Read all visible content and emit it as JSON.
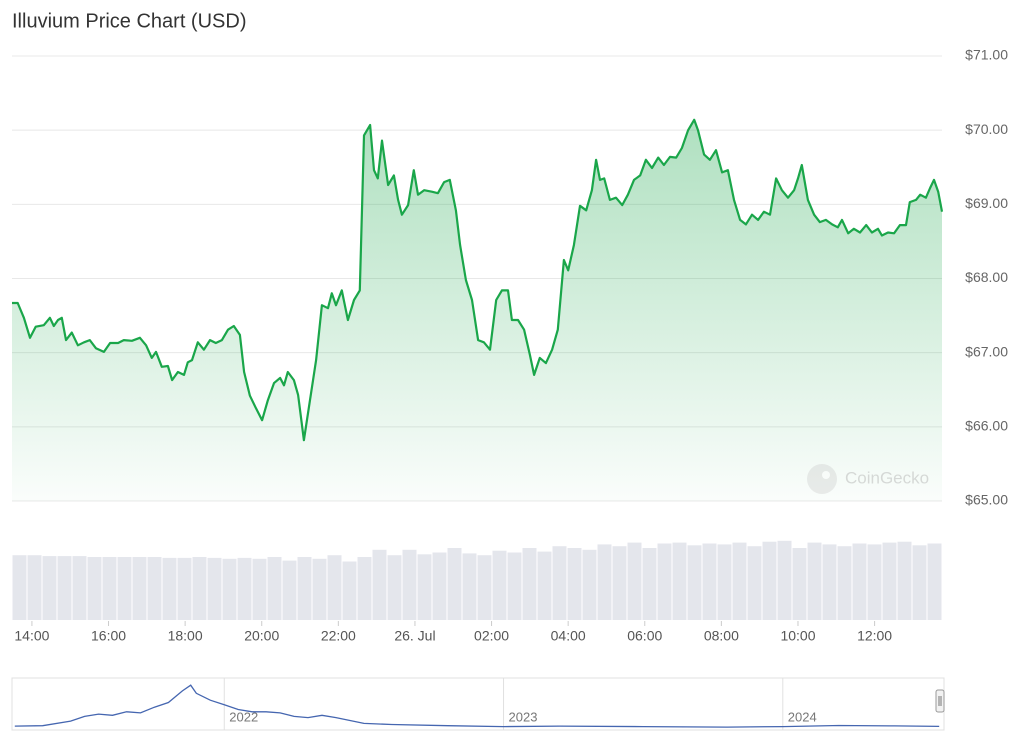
{
  "chart_data": {
    "type": "area",
    "title": "Illuvium Price Chart (USD)",
    "watermark": "CoinGecko",
    "color": "#1aa64a",
    "grid": true,
    "xlim": [
      13.48,
      37.76
    ],
    "xticks": [
      {
        "value": 14,
        "label": "14:00"
      },
      {
        "value": 16,
        "label": "16:00"
      },
      {
        "value": 18,
        "label": "18:00"
      },
      {
        "value": 20,
        "label": "20:00"
      },
      {
        "value": 22,
        "label": "22:00"
      },
      {
        "value": 24,
        "label": "26. Jul"
      },
      {
        "value": 26,
        "label": "02:00"
      },
      {
        "value": 28,
        "label": "04:00"
      },
      {
        "value": 30,
        "label": "06:00"
      },
      {
        "value": 32,
        "label": "08:00"
      },
      {
        "value": 34,
        "label": "10:00"
      },
      {
        "value": 36,
        "label": "12:00"
      }
    ],
    "ylim": [
      65,
      71
    ],
    "yticks": [
      {
        "value": 65,
        "label": "$65.00"
      },
      {
        "value": 66,
        "label": "$66.00"
      },
      {
        "value": 67,
        "label": "$67.00"
      },
      {
        "value": 68,
        "label": "$68.00"
      },
      {
        "value": 69,
        "label": "$69.00"
      },
      {
        "value": 70,
        "label": "$70.00"
      },
      {
        "value": 71,
        "label": "$71.00"
      }
    ],
    "x": [
      13.48,
      13.63,
      13.79,
      13.95,
      14.1,
      14.31,
      14.47,
      14.57,
      14.68,
      14.78,
      14.89,
      15.04,
      15.2,
      15.36,
      15.51,
      15.67,
      15.88,
      16.04,
      16.25,
      16.4,
      16.61,
      16.82,
      16.98,
      17.13,
      17.24,
      17.39,
      17.55,
      17.66,
      17.81,
      17.97,
      18.07,
      18.18,
      18.33,
      18.49,
      18.65,
      18.8,
      18.96,
      19.12,
      19.27,
      19.43,
      19.54,
      19.69,
      19.85,
      20.01,
      20.16,
      20.32,
      20.48,
      20.58,
      20.68,
      20.84,
      20.95,
      21.1,
      21.26,
      21.42,
      21.57,
      21.73,
      21.83,
      21.94,
      22.09,
      22.25,
      22.41,
      22.56,
      22.67,
      22.83,
      22.93,
      23.03,
      23.14,
      23.3,
      23.45,
      23.56,
      23.66,
      23.82,
      23.97,
      24.08,
      24.24,
      24.44,
      24.6,
      24.76,
      24.91,
      25.07,
      25.18,
      25.33,
      25.49,
      25.65,
      25.8,
      25.96,
      26.12,
      26.27,
      26.43,
      26.53,
      26.69,
      26.85,
      27.0,
      27.11,
      27.26,
      27.42,
      27.58,
      27.73,
      27.89,
      28.0,
      28.15,
      28.31,
      28.47,
      28.62,
      28.73,
      28.83,
      28.94,
      29.09,
      29.25,
      29.41,
      29.56,
      29.72,
      29.88,
      30.03,
      30.19,
      30.35,
      30.5,
      30.66,
      30.82,
      30.97,
      31.13,
      31.29,
      31.39,
      31.55,
      31.7,
      31.86,
      32.02,
      32.17,
      32.33,
      32.49,
      32.64,
      32.8,
      32.96,
      33.11,
      33.27,
      33.43,
      33.58,
      33.74,
      33.9,
      34.0,
      34.1,
      34.26,
      34.42,
      34.57,
      34.73,
      34.89,
      35.04,
      35.15,
      35.31,
      35.46,
      35.62,
      35.78,
      35.93,
      36.09,
      36.19,
      36.35,
      36.51,
      36.66,
      36.82,
      36.92,
      37.08,
      37.19,
      37.34,
      37.45,
      37.55,
      37.66,
      37.76
    ],
    "values": [
      67.67,
      67.67,
      67.47,
      67.2,
      67.35,
      67.37,
      67.47,
      67.36,
      67.44,
      67.47,
      67.17,
      67.27,
      67.1,
      67.14,
      67.17,
      67.06,
      67.01,
      67.13,
      67.13,
      67.17,
      67.16,
      67.2,
      67.1,
      66.93,
      67.01,
      66.81,
      66.82,
      66.63,
      66.74,
      66.7,
      66.87,
      66.9,
      67.14,
      67.04,
      67.17,
      67.13,
      67.17,
      67.31,
      67.36,
      67.24,
      66.74,
      66.42,
      66.25,
      66.09,
      66.36,
      66.59,
      66.66,
      66.56,
      66.74,
      66.63,
      66.43,
      65.82,
      66.36,
      66.9,
      67.64,
      67.6,
      67.8,
      67.64,
      67.84,
      67.44,
      67.71,
      67.84,
      69.93,
      70.07,
      69.46,
      69.35,
      69.86,
      69.26,
      69.39,
      69.06,
      68.86,
      68.99,
      69.46,
      69.13,
      69.19,
      69.17,
      69.15,
      69.3,
      69.33,
      68.92,
      68.45,
      67.98,
      67.71,
      67.17,
      67.14,
      67.04,
      67.71,
      67.84,
      67.84,
      67.44,
      67.44,
      67.31,
      66.97,
      66.7,
      66.93,
      66.86,
      67.04,
      67.31,
      68.25,
      68.11,
      68.45,
      68.98,
      68.92,
      69.19,
      69.6,
      69.33,
      69.35,
      69.06,
      69.09,
      68.99,
      69.13,
      69.33,
      69.39,
      69.6,
      69.49,
      69.63,
      69.53,
      69.64,
      69.63,
      69.76,
      70.0,
      70.14,
      70.0,
      69.67,
      69.6,
      69.73,
      69.43,
      69.46,
      69.06,
      68.79,
      68.73,
      68.86,
      68.79,
      68.9,
      68.86,
      69.35,
      69.19,
      69.09,
      69.19,
      69.35,
      69.53,
      69.06,
      68.86,
      68.76,
      68.79,
      68.73,
      68.69,
      68.79,
      68.61,
      68.67,
      68.62,
      68.72,
      68.62,
      68.67,
      68.58,
      68.62,
      68.61,
      68.72,
      68.72,
      69.03,
      69.06,
      69.13,
      69.09,
      69.22,
      69.33,
      69.17,
      68.9
    ],
    "volume": {
      "color": "#e4e6ec",
      "ylim": [
        0,
        100
      ],
      "values": [
        72,
        72,
        71,
        71,
        71,
        70,
        70,
        70,
        70,
        70,
        69,
        69,
        70,
        69,
        68,
        69,
        68,
        70,
        66,
        70,
        68,
        72,
        65,
        70,
        78,
        72,
        78,
        73,
        75,
        80,
        74,
        72,
        77,
        75,
        80,
        76,
        82,
        80,
        78,
        84,
        82,
        86,
        80,
        85,
        86,
        83,
        85,
        84,
        86,
        82,
        87,
        88,
        80,
        86,
        84,
        82,
        85,
        84,
        86,
        87,
        83,
        85
      ]
    },
    "navigator": {
      "color": "#4566b0",
      "xlim": [
        2021.24,
        2024.57
      ],
      "ylim": [
        0,
        1900
      ],
      "xticks": [
        2022,
        2023,
        2024
      ],
      "x": [
        2021.25,
        2021.35,
        2021.45,
        2021.5,
        2021.55,
        2021.6,
        2021.65,
        2021.7,
        2021.75,
        2021.8,
        2021.85,
        2021.88,
        2021.9,
        2021.95,
        2022.0,
        2022.05,
        2022.1,
        2022.15,
        2022.2,
        2022.25,
        2022.3,
        2022.35,
        2022.4,
        2022.5,
        2022.6,
        2022.8,
        2023.0,
        2023.2,
        2023.5,
        2023.8,
        2024.0,
        2024.2,
        2024.4,
        2024.56
      ],
      "values": [
        80,
        100,
        300,
        500,
        600,
        550,
        700,
        650,
        900,
        1100,
        1600,
        1850,
        1500,
        1200,
        1000,
        800,
        700,
        700,
        650,
        500,
        450,
        550,
        450,
        200,
        150,
        100,
        60,
        80,
        60,
        40,
        60,
        110,
        90,
        69
      ]
    }
  }
}
